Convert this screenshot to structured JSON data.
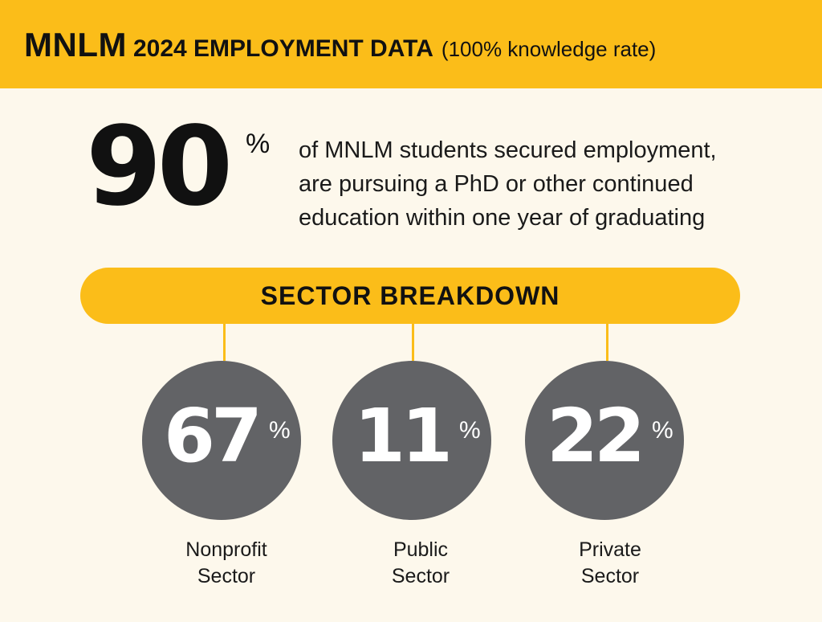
{
  "header": {
    "brand": "MNLM",
    "title": "2024 EMPLOYMENT DATA",
    "note": "(100% knowledge rate)"
  },
  "highlight": {
    "value": "90",
    "percent_sign": "%",
    "description_lines": [
      "of MNLM students secured employment,",
      "are pursuing a PhD or other continued",
      "education within one year of graduating"
    ]
  },
  "breakdown": {
    "label": "SECTOR BREAKDOWN",
    "sectors": [
      {
        "value": "67",
        "percent_sign": "%",
        "label_line1": "Nonprofit",
        "label_line2": "Sector"
      },
      {
        "value": "11",
        "percent_sign": "%",
        "label_line1": "Public",
        "label_line2": "Sector"
      },
      {
        "value": "22",
        "percent_sign": "%",
        "label_line1": "Private",
        "label_line2": "Sector"
      }
    ]
  },
  "colors": {
    "accent": "#fbbd19",
    "background": "#fdf8ec",
    "circle": "#626366"
  }
}
